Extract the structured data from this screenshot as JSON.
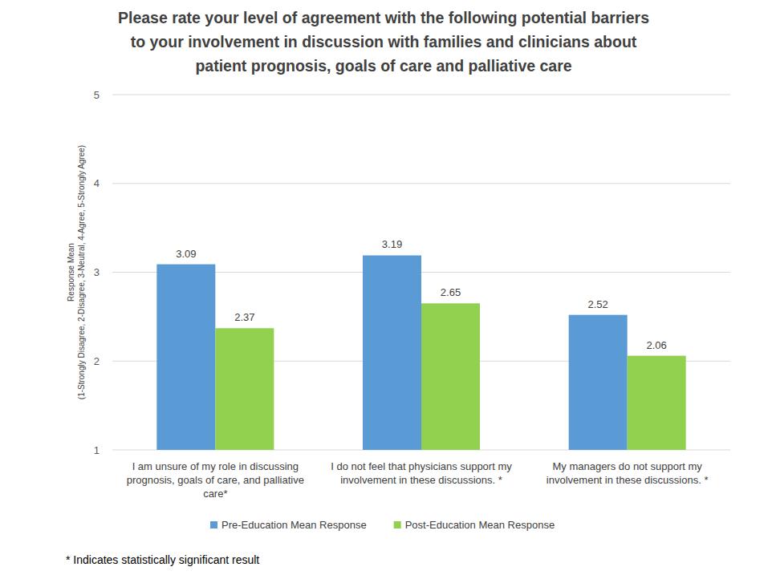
{
  "chart_data": {
    "type": "bar",
    "title": "Please rate your level of agreement with the following potential barriers\nto your involvement in discussion with families and clinicians about\npatient prognosis, goals of care and palliative care",
    "ylabel": "Response Mean\n(1-Strongly Disagree, 2-Disagree, 3-Neutral, 4-Agree, 5-Strongly Agree)",
    "categories": [
      "I am unsure of my role in discussing prognosis, goals of care, and palliative care*",
      "I do not feel that physicians support my involvement in these discussions. *",
      "My managers do not support my involvement in these discussions. *"
    ],
    "series": [
      {
        "name": "Pre-Education Mean Response",
        "color": "#5b9bd5",
        "values": [
          3.09,
          3.19,
          2.52
        ]
      },
      {
        "name": "Post-Education Mean Response",
        "color": "#92d050",
        "values": [
          2.37,
          2.65,
          2.06
        ]
      }
    ],
    "ylim": [
      1,
      5
    ],
    "yticks": [
      1,
      2,
      3,
      4,
      5
    ],
    "grid": true,
    "data_labels": true,
    "legend": "bottom",
    "annotations": [
      "* Indicates statistically significant result"
    ]
  }
}
